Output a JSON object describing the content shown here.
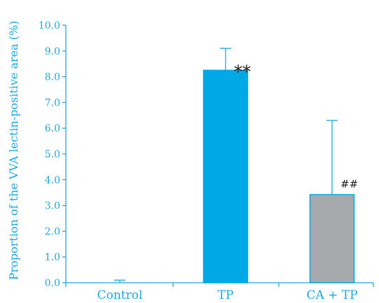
{
  "chart_data": {
    "type": "bar",
    "title": "",
    "xlabel": "",
    "ylabel": "Proportion of the VVA lectin-positive area (%)",
    "ylim": [
      0,
      10
    ],
    "yticks": [
      "0.0",
      "1.0",
      "2.0",
      "3.0",
      "4.0",
      "5.0",
      "6.0",
      "7.0",
      "8.0",
      "9.0",
      "10.0"
    ],
    "categories": [
      "Control",
      "TP",
      "CA + TP"
    ],
    "values": [
      0.0,
      8.25,
      3.42
    ],
    "errors": [
      0.1,
      0.85,
      2.88
    ],
    "significance": [
      "",
      "**",
      "##"
    ],
    "bar_colors": [
      "#00a9e6",
      "#00a9e6",
      "#a7a9ac"
    ],
    "bar_outline_color": "#00a9e6",
    "axis_color": "#1ea7e1",
    "text_color": "#1ea7e1",
    "annotation_color": "#231f20",
    "grid": false,
    "legend": "none"
  }
}
